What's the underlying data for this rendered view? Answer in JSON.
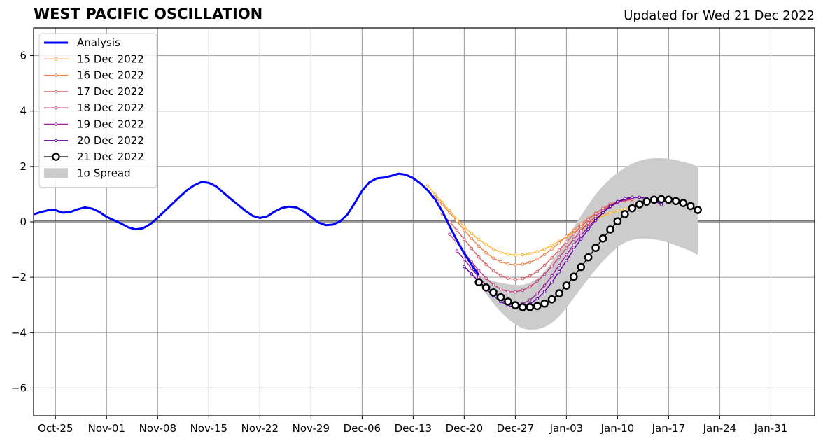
{
  "header": {
    "title": "WEST PACIFIC OSCILLATION",
    "updated": "Updated for Wed 21 Dec 2022"
  },
  "chart_data": {
    "type": "line",
    "title": "WEST PACIFIC OSCILLATION",
    "subtitle": "Updated for Wed 21 Dec 2022",
    "xlabel": "",
    "ylabel": "",
    "x_axis_type": "date",
    "xlim": [
      "2022-10-22",
      "2023-02-06"
    ],
    "ylim": [
      -7,
      7
    ],
    "x_ticks": [
      {
        "date": "2022-10-25",
        "label": "Oct-25"
      },
      {
        "date": "2022-11-01",
        "label": "Nov-01"
      },
      {
        "date": "2022-11-08",
        "label": "Nov-08"
      },
      {
        "date": "2022-11-15",
        "label": "Nov-15"
      },
      {
        "date": "2022-11-22",
        "label": "Nov-22"
      },
      {
        "date": "2022-11-29",
        "label": "Nov-29"
      },
      {
        "date": "2022-12-06",
        "label": "Dec-06"
      },
      {
        "date": "2022-12-13",
        "label": "Dec-13"
      },
      {
        "date": "2022-12-20",
        "label": "Dec-20"
      },
      {
        "date": "2022-12-27",
        "label": "Dec-27"
      },
      {
        "date": "2023-01-03",
        "label": "Jan-03"
      },
      {
        "date": "2023-01-10",
        "label": "Jan-10"
      },
      {
        "date": "2023-01-17",
        "label": "Jan-17"
      },
      {
        "date": "2023-01-24",
        "label": "Jan-24"
      },
      {
        "date": "2023-01-31",
        "label": "Jan-31"
      }
    ],
    "y_ticks": [
      {
        "value": 6,
        "label": "6"
      },
      {
        "value": 4,
        "label": "4"
      },
      {
        "value": 2,
        "label": "2"
      },
      {
        "value": 0,
        "label": "0"
      },
      {
        "value": -2,
        "label": "−2"
      },
      {
        "value": -4,
        "label": "−4"
      },
      {
        "value": -6,
        "label": "−6"
      }
    ],
    "grid": true,
    "zero_line": true,
    "legend_position": "top-left",
    "legend": [
      {
        "label": "Analysis",
        "style": "thick-line",
        "color": "#0000ff"
      },
      {
        "label": "15 Dec 2022",
        "style": "line-marker",
        "color": "#fcb62c"
      },
      {
        "label": "16 Dec 2022",
        "style": "line-marker",
        "color": "#f1834b"
      },
      {
        "label": "17 Dec 2022",
        "style": "line-marker",
        "color": "#dd5e66"
      },
      {
        "label": "18 Dec 2022",
        "style": "line-marker",
        "color": "#c43e7f"
      },
      {
        "label": "19 Dec 2022",
        "style": "line-marker",
        "color": "#9f1a9b"
      },
      {
        "label": "20 Dec 2022",
        "style": "line-marker",
        "color": "#5c01a6"
      },
      {
        "label": "21 Dec 2022",
        "style": "circle-marker",
        "color": "#000000"
      },
      {
        "label": "1σ Spread",
        "style": "patch",
        "color": "#cccccc"
      }
    ],
    "analysis": {
      "name": "Analysis",
      "color": "#0000ff",
      "start_date": "2022-10-22",
      "values": [
        0.27,
        0.35,
        0.42,
        0.42,
        0.33,
        0.35,
        0.45,
        0.52,
        0.48,
        0.36,
        0.18,
        0.06,
        -0.06,
        -0.2,
        -0.27,
        -0.23,
        -0.08,
        0.15,
        0.4,
        0.65,
        0.9,
        1.14,
        1.32,
        1.44,
        1.41,
        1.28,
        1.06,
        0.83,
        0.62,
        0.4,
        0.22,
        0.14,
        0.2,
        0.37,
        0.5,
        0.55,
        0.52,
        0.38,
        0.18,
        -0.02,
        -0.12,
        -0.1,
        0.02,
        0.27,
        0.68,
        1.12,
        1.43,
        1.57,
        1.6,
        1.66,
        1.74,
        1.7,
        1.58,
        1.39,
        1.14,
        0.82,
        0.38,
        -0.16,
        -0.67,
        -1.14,
        -1.55,
        -1.92
      ]
    },
    "forecasts": [
      {
        "name": "15 Dec 2022",
        "color": "#fcb62c",
        "start_date": "2022-12-15",
        "values": [
          1.3,
          1.0,
          0.7,
          0.4,
          0.1,
          -0.18,
          -0.42,
          -0.63,
          -0.82,
          -0.98,
          -1.09,
          -1.17,
          -1.2,
          -1.19,
          -1.15,
          -1.08,
          -0.98,
          -0.85,
          -0.7,
          -0.54,
          -0.38,
          -0.21,
          -0.05,
          0.1,
          0.22,
          0.32,
          0.4,
          0.46,
          0.5
        ]
      },
      {
        "name": "16 Dec 2022",
        "color": "#f1834b",
        "start_date": "2022-12-16",
        "values": [
          0.9,
          0.62,
          0.33,
          0.02,
          -0.3,
          -0.6,
          -0.88,
          -1.12,
          -1.31,
          -1.44,
          -1.52,
          -1.55,
          -1.53,
          -1.46,
          -1.34,
          -1.18,
          -0.98,
          -0.76,
          -0.52,
          -0.3,
          -0.08,
          0.13,
          0.31,
          0.47,
          0.6,
          0.7,
          0.76,
          0.8
        ]
      },
      {
        "name": "17 Dec 2022",
        "color": "#dd5e66",
        "start_date": "2022-12-17",
        "values": [
          0.28,
          0.0,
          -0.3,
          -0.63,
          -0.96,
          -1.27,
          -1.54,
          -1.77,
          -1.94,
          -2.04,
          -2.08,
          -2.05,
          -1.95,
          -1.79,
          -1.57,
          -1.3,
          -1.02,
          -0.73,
          -0.44,
          -0.17,
          0.08,
          0.3,
          0.49,
          0.64,
          0.74,
          0.8,
          0.84
        ]
      },
      {
        "name": "18 Dec 2022",
        "color": "#c43e7f",
        "start_date": "2022-12-18",
        "values": [
          -0.45,
          -0.76,
          -1.1,
          -1.44,
          -1.76,
          -2.04,
          -2.27,
          -2.43,
          -2.52,
          -2.53,
          -2.47,
          -2.34,
          -2.14,
          -1.89,
          -1.6,
          -1.28,
          -0.95,
          -0.63,
          -0.32,
          -0.04,
          0.2,
          0.41,
          0.58,
          0.7,
          0.78,
          0.82
        ]
      },
      {
        "name": "19 Dec 2022",
        "color": "#9f1a9b",
        "start_date": "2022-12-19",
        "values": [
          -1.05,
          -1.35,
          -1.68,
          -2.0,
          -2.3,
          -2.58,
          -2.8,
          -2.95,
          -3.0,
          -2.96,
          -2.82,
          -2.6,
          -2.3,
          -1.95,
          -1.57,
          -1.19,
          -0.83,
          -0.49,
          -0.18,
          0.1,
          0.34,
          0.54,
          0.7,
          0.81,
          0.87,
          0.88,
          0.85,
          0.78,
          0.68
        ]
      },
      {
        "name": "20 Dec 2022",
        "color": "#5c01a6",
        "start_date": "2022-12-20",
        "values": [
          -1.62,
          -1.88,
          -2.16,
          -2.42,
          -2.67,
          -2.88,
          -3.02,
          -3.08,
          -3.06,
          -2.96,
          -2.78,
          -2.52,
          -2.18,
          -1.8,
          -1.4,
          -1.0,
          -0.62,
          -0.27,
          0.05,
          0.33,
          0.56,
          0.73,
          0.84,
          0.89,
          0.89,
          0.84,
          0.75,
          0.63
        ]
      },
      {
        "name": "21 Dec 2022",
        "color": "#000000",
        "marker": "circle",
        "start_date": "2022-12-22",
        "values": [
          -2.18,
          -2.37,
          -2.55,
          -2.72,
          -2.88,
          -3.01,
          -3.08,
          -3.08,
          -3.04,
          -2.95,
          -2.8,
          -2.58,
          -2.3,
          -1.98,
          -1.63,
          -1.28,
          -0.94,
          -0.6,
          -0.28,
          0.02,
          0.28,
          0.49,
          0.63,
          0.73,
          0.8,
          0.82,
          0.8,
          0.75,
          0.68,
          0.57,
          0.43
        ]
      }
    ],
    "spread": {
      "name": "1σ Spread",
      "color": "#cccccc",
      "start_date": "2022-12-22",
      "upper": [
        -2.0,
        -2.05,
        -2.15,
        -2.2,
        -2.25,
        -2.28,
        -2.28,
        -2.2,
        -2.05,
        -1.8,
        -1.45,
        -1.05,
        -0.62,
        -0.2,
        0.22,
        0.62,
        0.99,
        1.3,
        1.56,
        1.77,
        1.95,
        2.1,
        2.2,
        2.27,
        2.3,
        2.3,
        2.28,
        2.23,
        2.17,
        2.1,
        2.0
      ],
      "lower": [
        -2.2,
        -2.6,
        -2.95,
        -3.25,
        -3.5,
        -3.7,
        -3.85,
        -3.9,
        -3.88,
        -3.8,
        -3.65,
        -3.42,
        -3.1,
        -2.75,
        -2.4,
        -2.05,
        -1.72,
        -1.42,
        -1.15,
        -0.92,
        -0.75,
        -0.65,
        -0.6,
        -0.6,
        -0.63,
        -0.68,
        -0.75,
        -0.85,
        -0.95,
        -1.05,
        -1.2
      ]
    }
  }
}
